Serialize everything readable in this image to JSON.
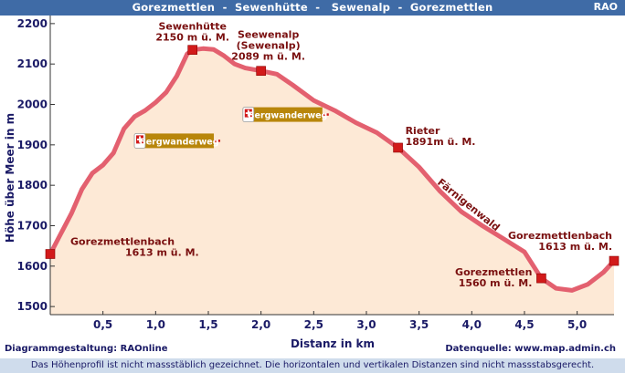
{
  "header": {
    "title": "Gorezmettlen  -  Sewenhütte  -   Sewenalp  -  Gorezmettlen",
    "brand": "RAO"
  },
  "footer": {
    "credit_left": "Diagrammgestaltung: RAOnline",
    "credit_right": "Datenquelle: www.map.admin.ch",
    "note": "Das Höhenprofil ist nicht massstäblich gezeichnet. Die horizontalen und vertikalen Distanzen sind nicht massstabsgerecht."
  },
  "colors": {
    "header_bg": "#3f6ba6",
    "footer_bg": "#cfdcec",
    "profile_fill": "#fde9d6",
    "profile_line": "#e3606f",
    "marker": "#d21a1a",
    "sign_bg": "#b8860b"
  },
  "chart_data": {
    "type": "area",
    "title": "",
    "xlabel": "Distanz in km",
    "ylabel": "Höhe über Meer in m",
    "xlim": [
      0,
      5.35
    ],
    "ylim": [
      1480,
      2220
    ],
    "grid": false,
    "x_ticks": [
      "0,5",
      "1,0",
      "1,5",
      "2,0",
      "2,5",
      "3,0",
      "3,5",
      "4,0",
      "4,5",
      "5,0"
    ],
    "x_tick_values": [
      0.5,
      1.0,
      1.5,
      2.0,
      2.5,
      3.0,
      3.5,
      4.0,
      4.5,
      5.0
    ],
    "y_ticks": [
      "1500",
      "1600",
      "1700",
      "1800",
      "1900",
      "2000",
      "2100",
      "2200"
    ],
    "y_tick_values": [
      1500,
      1600,
      1700,
      1800,
      1900,
      2000,
      2100,
      2200
    ],
    "profile": {
      "x": [
        0.0,
        0.1,
        0.2,
        0.3,
        0.4,
        0.5,
        0.6,
        0.7,
        0.8,
        0.9,
        1.0,
        1.1,
        1.2,
        1.3,
        1.35,
        1.45,
        1.55,
        1.65,
        1.75,
        1.85,
        2.0,
        2.15,
        2.3,
        2.5,
        2.7,
        2.9,
        3.1,
        3.3,
        3.5,
        3.7,
        3.9,
        4.1,
        4.3,
        4.5,
        4.66,
        4.8,
        4.95,
        5.1,
        5.25,
        5.35
      ],
      "y": [
        1630,
        1680,
        1730,
        1790,
        1830,
        1850,
        1880,
        1940,
        1970,
        1985,
        2005,
        2030,
        2070,
        2125,
        2135,
        2138,
        2136,
        2120,
        2100,
        2090,
        2083,
        2075,
        2048,
        2010,
        1985,
        1955,
        1930,
        1893,
        1845,
        1785,
        1735,
        1700,
        1668,
        1635,
        1570,
        1545,
        1540,
        1555,
        1585,
        1613
      ]
    },
    "waypoints": [
      {
        "name": "Gorezmettlenbach",
        "elev": "1613 m ü. M.",
        "x": 0.0,
        "y": 1630
      },
      {
        "name": "Sewenhütte",
        "elev": "2150 m ü. M.",
        "x": 1.35,
        "y": 2135
      },
      {
        "name": "Seewenalp\n(Sewenalp)",
        "elev": "2089 m ü. M.",
        "x": 2.0,
        "y": 2083
      },
      {
        "name": "Rieter",
        "elev": "1891m ü. M.",
        "x": 3.3,
        "y": 1893
      },
      {
        "name": "Gorezmettlen",
        "elev": "1560 m ü. M.",
        "x": 4.66,
        "y": 1570
      },
      {
        "name": "Gorezmettlenbach",
        "elev": "1613 m ü. M.",
        "x": 5.35,
        "y": 1613
      }
    ],
    "annotations": [
      {
        "text": "Bergwanderweg",
        "x": 0.85,
        "y": 1910
      },
      {
        "text": "Bergwanderweg",
        "x": 1.88,
        "y": 1975
      },
      {
        "text": "Färnigenwald",
        "x": 3.95,
        "y": 1745
      }
    ]
  }
}
